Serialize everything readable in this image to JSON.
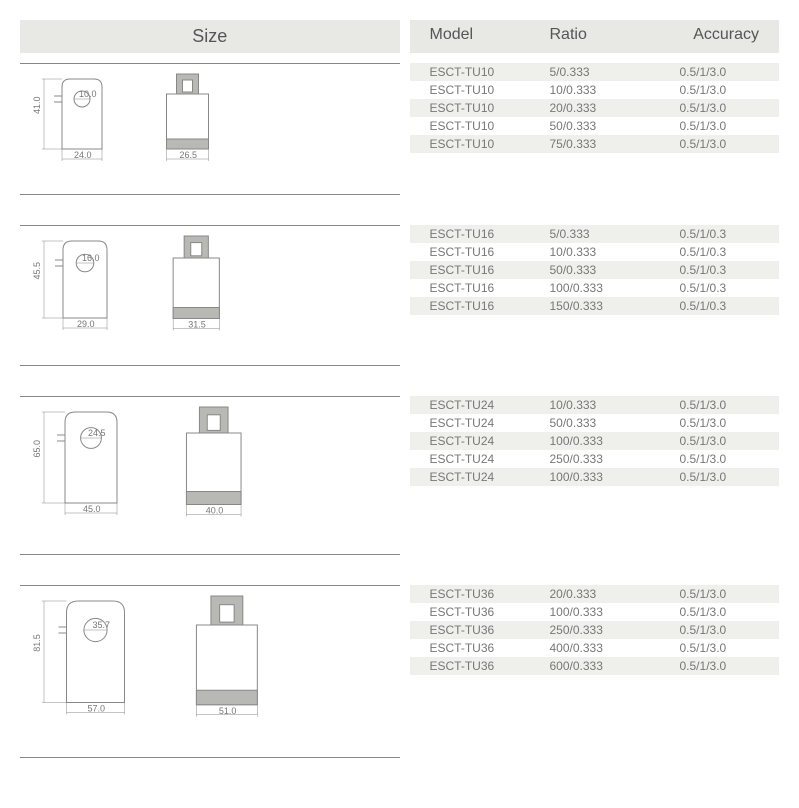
{
  "header": {
    "size": "Size",
    "model": "Model",
    "ratio": "Ratio",
    "accuracy": "Accuracy"
  },
  "colors": {
    "header_bg": "#e8e8e5",
    "stripe_bg": "#efefec",
    "text": "#666",
    "stroke": "#888",
    "gray_fill": "#b8b8b5"
  },
  "products": [
    {
      "dims": {
        "height": "41.0",
        "front_w": "24.0",
        "side_w": "26.5",
        "hole": "10.0"
      },
      "scale": 1.0,
      "rows": [
        {
          "model": "ESCT-TU10",
          "ratio": "5/0.333",
          "accuracy": "0.5/1/3.0"
        },
        {
          "model": "ESCT-TU10",
          "ratio": "10/0.333",
          "accuracy": "0.5/1/3.0"
        },
        {
          "model": "ESCT-TU10",
          "ratio": "20/0.333",
          "accuracy": "0.5/1/3.0"
        },
        {
          "model": "ESCT-TU10",
          "ratio": "50/0.333",
          "accuracy": "0.5/1/3.0"
        },
        {
          "model": "ESCT-TU10",
          "ratio": "75/0.333",
          "accuracy": "0.5/1/3.0"
        }
      ]
    },
    {
      "dims": {
        "height": "45.5",
        "front_w": "29.0",
        "side_w": "31.5",
        "hole": "16.0"
      },
      "scale": 1.1,
      "rows": [
        {
          "model": "ESCT-TU16",
          "ratio": "5/0.333",
          "accuracy": "0.5/1/0.3"
        },
        {
          "model": "ESCT-TU16",
          "ratio": "10/0.333",
          "accuracy": "0.5/1/0.3"
        },
        {
          "model": "ESCT-TU16",
          "ratio": "50/0.333",
          "accuracy": "0.5/1/0.3"
        },
        {
          "model": "ESCT-TU16",
          "ratio": "100/0.333",
          "accuracy": "0.5/1/0.3"
        },
        {
          "model": "ESCT-TU16",
          "ratio": "150/0.333",
          "accuracy": "0.5/1/0.3"
        }
      ]
    },
    {
      "dims": {
        "height": "65.0",
        "front_w": "45.0",
        "side_w": "40.0",
        "hole": "24.5"
      },
      "scale": 1.3,
      "rows": [
        {
          "model": "ESCT-TU24",
          "ratio": "10/0.333",
          "accuracy": "0.5/1/3.0"
        },
        {
          "model": "ESCT-TU24",
          "ratio": "50/0.333",
          "accuracy": "0.5/1/3.0"
        },
        {
          "model": "ESCT-TU24",
          "ratio": "100/0.333",
          "accuracy": "0.5/1/3.0"
        },
        {
          "model": "ESCT-TU24",
          "ratio": "250/0.333",
          "accuracy": "0.5/1/3.0"
        },
        {
          "model": "ESCT-TU24",
          "ratio": "100/0.333",
          "accuracy": "0.5/1/3.0"
        }
      ]
    },
    {
      "dims": {
        "height": "81.5",
        "front_w": "57.0",
        "side_w": "51.0",
        "hole": "35.7"
      },
      "scale": 1.45,
      "rows": [
        {
          "model": "ESCT-TU36",
          "ratio": "20/0.333",
          "accuracy": "0.5/1/3.0"
        },
        {
          "model": "ESCT-TU36",
          "ratio": "100/0.333",
          "accuracy": "0.5/1/3.0"
        },
        {
          "model": "ESCT-TU36",
          "ratio": "250/0.333",
          "accuracy": "0.5/1/3.0"
        },
        {
          "model": "ESCT-TU36",
          "ratio": "400/0.333",
          "accuracy": "0.5/1/3.0"
        },
        {
          "model": "ESCT-TU36",
          "ratio": "600/0.333",
          "accuracy": "0.5/1/3.0"
        }
      ]
    }
  ]
}
